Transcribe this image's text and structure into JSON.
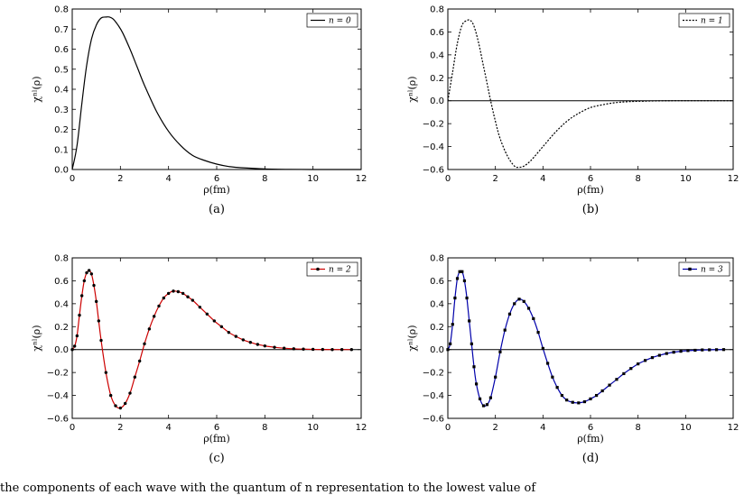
{
  "chart_data": [
    {
      "type": "line",
      "caption": "(a)",
      "xlabel": "ρ(fm)",
      "ylabel": "χⁿˡ(ρ)",
      "xlim": [
        0,
        12
      ],
      "ylim": [
        0,
        0.8
      ],
      "xticks": [
        "0",
        "2",
        "4",
        "6",
        "8",
        "10",
        "12"
      ],
      "yticks": [
        "0.0",
        "0.1",
        "0.2",
        "0.3",
        "0.4",
        "0.5",
        "0.6",
        "0.7",
        "0.8"
      ],
      "zero_line": false,
      "legend": "top-right",
      "series": [
        {
          "name": "n = 0",
          "style": "solid",
          "color": "#000000",
          "marker": "none",
          "x": [
            0,
            0.2,
            0.4,
            0.6,
            0.8,
            1.0,
            1.2,
            1.4,
            1.55,
            1.7,
            1.9,
            2.1,
            2.4,
            2.7,
            3.0,
            3.5,
            4.0,
            4.5,
            5.0,
            5.5,
            6.0,
            6.5,
            7.0,
            8.0,
            9.0,
            10.0,
            11.0,
            12.0
          ],
          "y": [
            0.0,
            0.12,
            0.33,
            0.52,
            0.65,
            0.72,
            0.755,
            0.76,
            0.76,
            0.75,
            0.72,
            0.68,
            0.6,
            0.51,
            0.42,
            0.29,
            0.19,
            0.12,
            0.07,
            0.045,
            0.027,
            0.015,
            0.009,
            0.003,
            0.001,
            0.0,
            0.0,
            0.0
          ]
        }
      ]
    },
    {
      "type": "line",
      "caption": "(b)",
      "xlabel": "ρ(fm)",
      "ylabel": "χⁿˡ(ρ)",
      "xlim": [
        0,
        12
      ],
      "ylim": [
        -0.6,
        0.8
      ],
      "xticks": [
        "0",
        "2",
        "4",
        "6",
        "8",
        "10",
        "12"
      ],
      "yticks": [
        "−0.6",
        "−0.4",
        "−0.2",
        "0.0",
        "0.2",
        "0.4",
        "0.6",
        "0.8"
      ],
      "zero_line": true,
      "legend": "top-right",
      "series": [
        {
          "name": "n = 1",
          "style": "dotted",
          "color": "#000000",
          "marker": "none",
          "x": [
            0,
            0.2,
            0.4,
            0.6,
            0.8,
            0.95,
            1.1,
            1.3,
            1.5,
            1.7,
            1.8,
            2.0,
            2.2,
            2.5,
            2.8,
            3.0,
            3.2,
            3.5,
            4.0,
            4.5,
            5.0,
            5.5,
            6.0,
            6.5,
            7.0,
            7.5,
            8.0,
            9.0,
            10.0,
            12.0
          ],
          "y": [
            0.0,
            0.25,
            0.5,
            0.66,
            0.7,
            0.7,
            0.65,
            0.5,
            0.3,
            0.1,
            0.0,
            -0.18,
            -0.33,
            -0.48,
            -0.57,
            -0.58,
            -0.57,
            -0.52,
            -0.4,
            -0.28,
            -0.18,
            -0.11,
            -0.06,
            -0.035,
            -0.018,
            -0.009,
            -0.005,
            -0.001,
            0.0,
            0.0
          ]
        }
      ]
    },
    {
      "type": "line",
      "caption": "(c)",
      "xlabel": "ρ(fm)",
      "ylabel": "χⁿˡ(ρ)",
      "xlim": [
        0,
        12
      ],
      "ylim": [
        -0.6,
        0.8
      ],
      "xticks": [
        "0",
        "2",
        "4",
        "6",
        "8",
        "10",
        "12"
      ],
      "yticks": [
        "−0.6",
        "−0.4",
        "−0.2",
        "0.0",
        "0.2",
        "0.4",
        "0.6",
        "0.8"
      ],
      "zero_line": true,
      "legend": "top-right",
      "series": [
        {
          "name": "n = 2",
          "style": "solid",
          "color": "#cc0000",
          "marker": "circle",
          "x": [
            0,
            0.1,
            0.2,
            0.3,
            0.4,
            0.5,
            0.6,
            0.7,
            0.8,
            0.9,
            1.0,
            1.1,
            1.2,
            1.4,
            1.6,
            1.8,
            2.0,
            2.2,
            2.4,
            2.6,
            2.8,
            3.0,
            3.2,
            3.4,
            3.6,
            3.8,
            4.0,
            4.2,
            4.4,
            4.6,
            4.8,
            5.0,
            5.3,
            5.6,
            5.9,
            6.2,
            6.5,
            6.8,
            7.1,
            7.4,
            7.7,
            8.0,
            8.4,
            8.8,
            9.2,
            9.6,
            10.0,
            10.4,
            10.8,
            11.2,
            11.6
          ],
          "y": [
            0.0,
            0.03,
            0.12,
            0.3,
            0.47,
            0.6,
            0.67,
            0.69,
            0.66,
            0.56,
            0.42,
            0.25,
            0.08,
            -0.2,
            -0.4,
            -0.49,
            -0.51,
            -0.47,
            -0.38,
            -0.24,
            -0.1,
            0.05,
            0.18,
            0.29,
            0.38,
            0.45,
            0.49,
            0.51,
            0.505,
            0.49,
            0.46,
            0.43,
            0.37,
            0.31,
            0.25,
            0.2,
            0.15,
            0.115,
            0.085,
            0.063,
            0.045,
            0.032,
            0.02,
            0.012,
            0.007,
            0.004,
            0.002,
            0.001,
            0.0,
            0.0,
            0.0
          ]
        }
      ]
    },
    {
      "type": "line",
      "caption": "(d)",
      "xlabel": "ρ(fm)",
      "ylabel": "χⁿˡ(ρ)",
      "xlim": [
        0,
        12
      ],
      "ylim": [
        -0.6,
        0.8
      ],
      "xticks": [
        "0",
        "2",
        "4",
        "6",
        "8",
        "10",
        "12"
      ],
      "yticks": [
        "−0.6",
        "−0.4",
        "−0.2",
        "0.0",
        "0.2",
        "0.4",
        "0.6",
        "0.8"
      ],
      "zero_line": true,
      "legend": "top-right",
      "series": [
        {
          "name": "n = 3",
          "style": "solid",
          "color": "#0000aa",
          "marker": "square",
          "x": [
            0,
            0.1,
            0.2,
            0.3,
            0.4,
            0.5,
            0.6,
            0.7,
            0.8,
            0.9,
            1.0,
            1.1,
            1.2,
            1.35,
            1.5,
            1.65,
            1.8,
            2.0,
            2.2,
            2.4,
            2.6,
            2.8,
            3.0,
            3.2,
            3.4,
            3.6,
            3.8,
            4.0,
            4.2,
            4.4,
            4.6,
            4.8,
            5.0,
            5.25,
            5.5,
            5.75,
            6.0,
            6.25,
            6.5,
            6.8,
            7.1,
            7.4,
            7.7,
            8.0,
            8.3,
            8.6,
            8.9,
            9.2,
            9.5,
            9.8,
            10.1,
            10.4,
            10.7,
            11.0,
            11.3,
            11.6
          ],
          "y": [
            0.0,
            0.05,
            0.22,
            0.45,
            0.62,
            0.68,
            0.68,
            0.6,
            0.45,
            0.25,
            0.05,
            -0.15,
            -0.3,
            -0.43,
            -0.49,
            -0.48,
            -0.42,
            -0.24,
            -0.02,
            0.17,
            0.31,
            0.4,
            0.44,
            0.42,
            0.36,
            0.27,
            0.15,
            0.01,
            -0.12,
            -0.24,
            -0.33,
            -0.4,
            -0.44,
            -0.46,
            -0.465,
            -0.455,
            -0.43,
            -0.4,
            -0.36,
            -0.31,
            -0.26,
            -0.21,
            -0.165,
            -0.125,
            -0.095,
            -0.07,
            -0.05,
            -0.034,
            -0.023,
            -0.015,
            -0.009,
            -0.006,
            -0.003,
            -0.002,
            -0.001,
            0.0
          ]
        }
      ]
    }
  ],
  "bottom_text": "the components of each wave with the quantum of n representation to the lowest value of"
}
